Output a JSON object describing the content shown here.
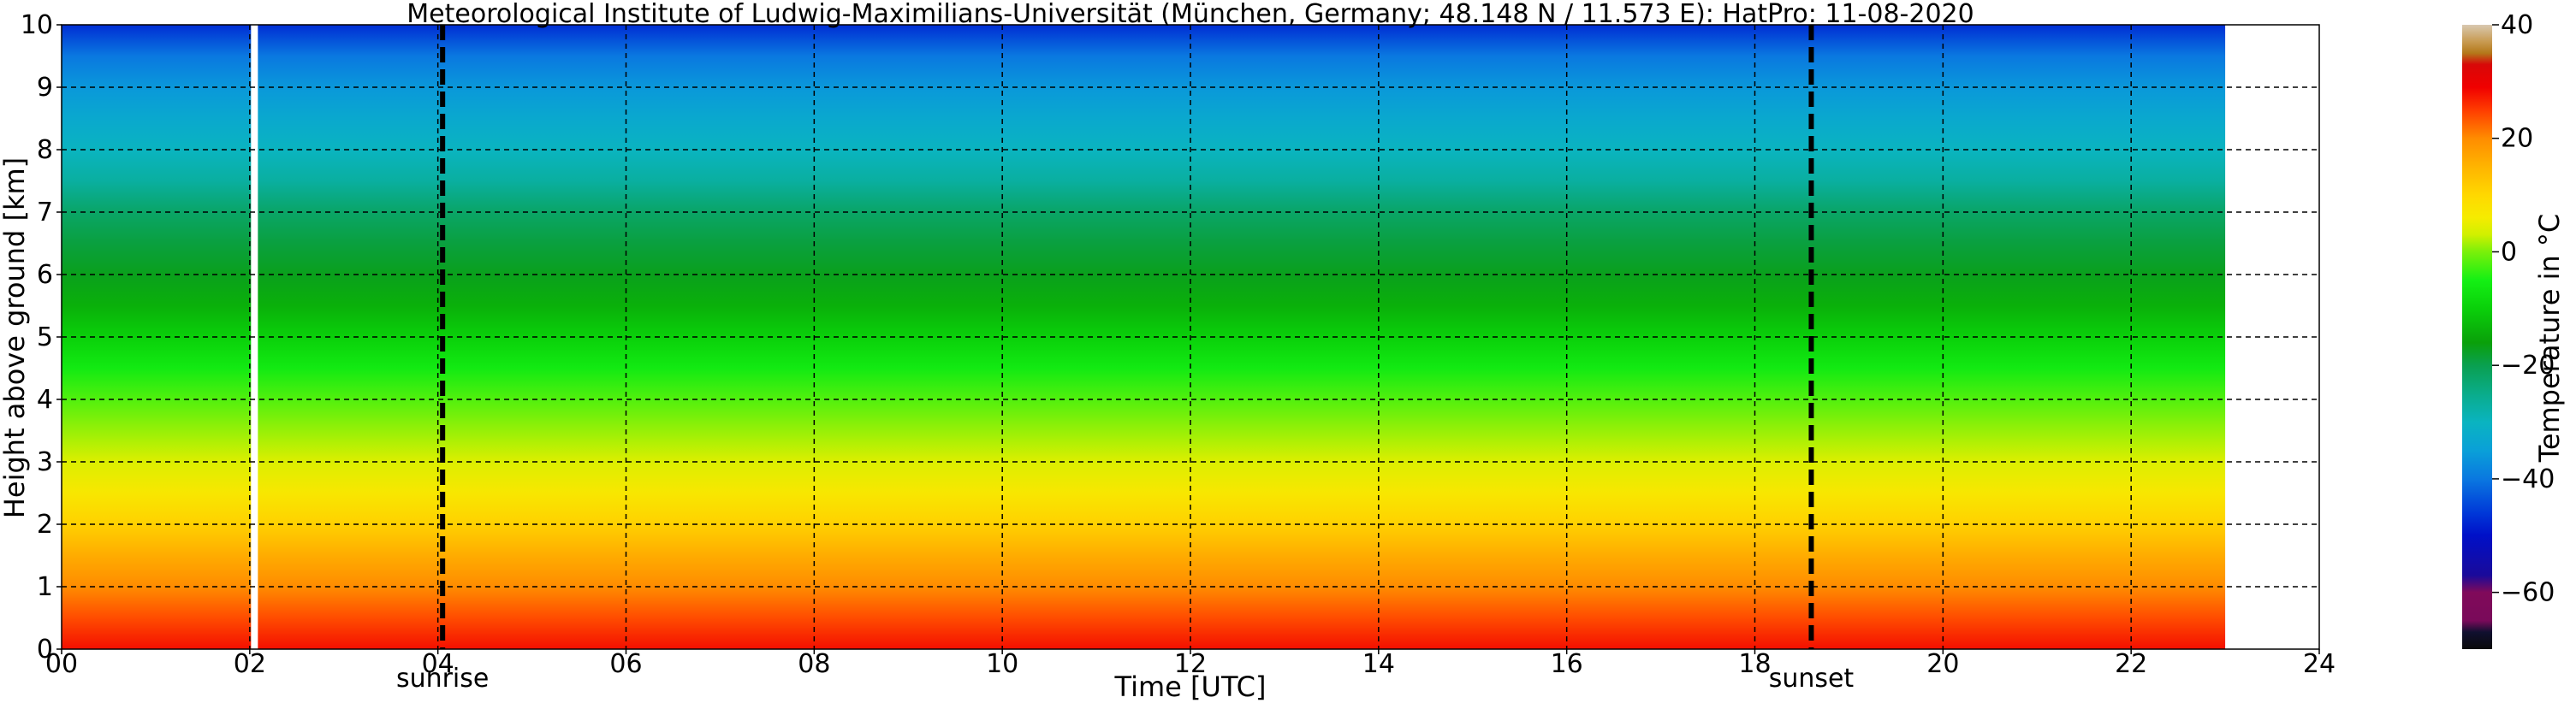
{
  "chart_data": {
    "type": "heatmap",
    "title": "Meteorological Institute of Ludwig-Maximilians-Universität (München, Germany; 48.148 N / 11.573 E):    HatPro: 11-08-2020",
    "xlabel": "Time [UTC]",
    "ylabel": "Height above ground [km]",
    "xlim": [
      0,
      24
    ],
    "ylim": [
      0,
      10
    ],
    "x_ticks": [
      "00",
      "02",
      "04",
      "06",
      "08",
      "10",
      "12",
      "14",
      "16",
      "18",
      "20",
      "22",
      "24"
    ],
    "y_ticks": [
      "0",
      "1",
      "2",
      "3",
      "4",
      "5",
      "6",
      "7",
      "8",
      "9",
      "10"
    ],
    "grid": true,
    "data_time_range": [
      0,
      23
    ],
    "data_gap_time": 2.05,
    "events": [
      {
        "label": "sunrise",
        "time": 4.05
      },
      {
        "label": "sunset",
        "time": 18.6
      }
    ],
    "colorbar": {
      "label": "Temperature in $^\\circ$C",
      "range": [
        -70,
        40
      ],
      "ticks": [
        "40",
        "20",
        "0",
        "−20",
        "−40",
        "−60"
      ],
      "tick_values": [
        40,
        20,
        0,
        -20,
        -40,
        -60
      ]
    },
    "temperature_profile": {
      "heights_km": [
        0,
        0.5,
        1,
        1.5,
        2,
        2.5,
        3,
        3.5,
        4,
        4.5,
        5,
        5.5,
        6,
        6.5,
        7,
        7.5,
        8,
        8.5,
        9,
        9.5,
        10
      ],
      "temperature_c": [
        28,
        24,
        20,
        16,
        11,
        7,
        4,
        1,
        -2,
        -6,
        -10,
        -14,
        -17,
        -19,
        -22,
        -27,
        -30,
        -33,
        -36,
        -40,
        -47
      ]
    }
  }
}
